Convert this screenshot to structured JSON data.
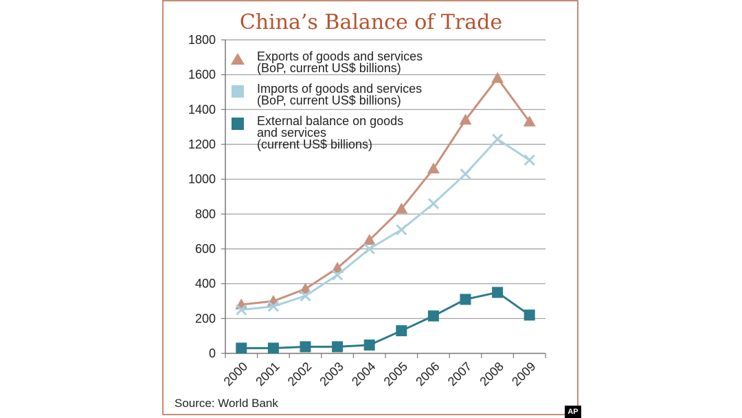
{
  "chart_data": {
    "type": "line",
    "title": "China’s Balance of Trade",
    "source": "Source: World Bank",
    "x": [
      "2000",
      "2001",
      "2002",
      "2003",
      "2004",
      "2005",
      "2006",
      "2007",
      "2008",
      "2009"
    ],
    "yticks": [
      "0",
      "200",
      "400",
      "600",
      "800",
      "1000",
      "1200",
      "1400",
      "1600",
      "1800"
    ],
    "ylim": [
      0,
      1800
    ],
    "grid": true,
    "legend_position": "top-left",
    "series": [
      {
        "name_lines": [
          "Exports of goods and services",
          "(BoP, current US$ billions)"
        ],
        "color": "#c9907a",
        "marker": "triangle",
        "values": [
          280,
          300,
          370,
          490,
          650,
          830,
          1060,
          1340,
          1580,
          1330
        ]
      },
      {
        "name_lines": [
          "Imports of goods and services",
          "(BoP, current US$ billions)"
        ],
        "color": "#a9d0df",
        "marker": "x",
        "values": [
          250,
          270,
          330,
          450,
          600,
          710,
          860,
          1030,
          1230,
          1110
        ]
      },
      {
        "name_lines": [
          "External balance on goods",
          "and services",
          "(current US$ billions)"
        ],
        "color": "#2b7b8c",
        "marker": "square",
        "values": [
          30,
          30,
          38,
          38,
          48,
          130,
          215,
          310,
          350,
          220
        ]
      }
    ]
  },
  "badge": "AP"
}
